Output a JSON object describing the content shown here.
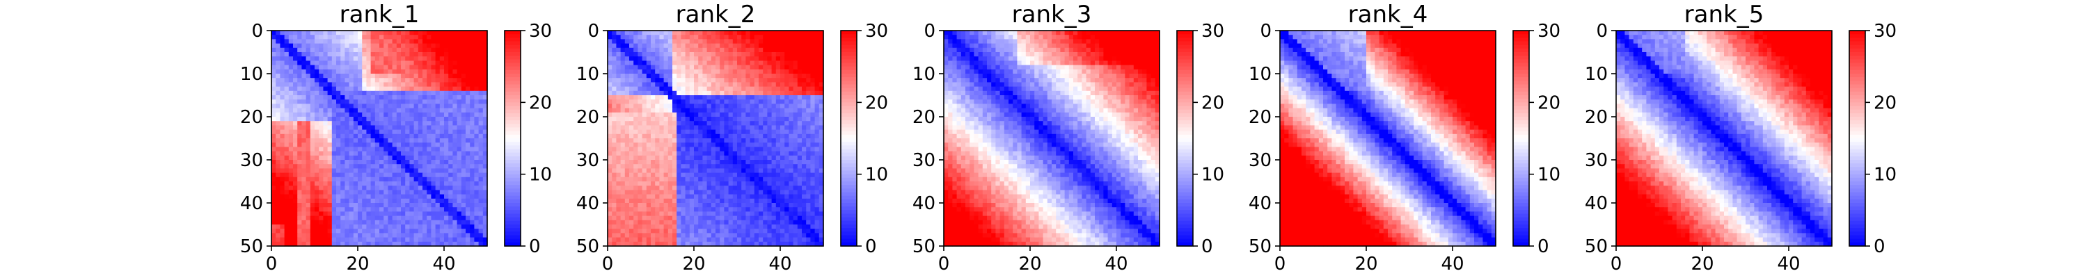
{
  "chart_data": [
    {
      "type": "heatmap",
      "title": "rank_1",
      "pattern": "rank_1",
      "size": 50,
      "xticks": [
        0,
        20,
        40
      ],
      "yticks": [
        0,
        10,
        20,
        30,
        40,
        50
      ],
      "xlim": [
        0,
        50
      ],
      "ylim": [
        50,
        0
      ],
      "colorbar": {
        "range": [
          0,
          30
        ],
        "ticks": [
          0,
          10,
          20,
          30
        ],
        "colormap": "bwr"
      }
    },
    {
      "type": "heatmap",
      "title": "rank_2",
      "pattern": "rank_2",
      "size": 50,
      "xticks": [
        0,
        20,
        40
      ],
      "yticks": [
        0,
        10,
        20,
        30,
        40,
        50
      ],
      "xlim": [
        0,
        50
      ],
      "ylim": [
        50,
        0
      ],
      "colorbar": {
        "range": [
          0,
          30
        ],
        "ticks": [
          0,
          10,
          20,
          30
        ],
        "colormap": "bwr"
      }
    },
    {
      "type": "heatmap",
      "title": "rank_3",
      "pattern": "rank_3",
      "size": 50,
      "xticks": [
        0,
        20,
        40
      ],
      "yticks": [
        0,
        10,
        20,
        30,
        40,
        50
      ],
      "xlim": [
        0,
        50
      ],
      "ylim": [
        50,
        0
      ],
      "colorbar": {
        "range": [
          0,
          30
        ],
        "ticks": [
          0,
          10,
          20,
          30
        ],
        "colormap": "bwr"
      }
    },
    {
      "type": "heatmap",
      "title": "rank_4",
      "pattern": "rank_4",
      "size": 50,
      "xticks": [
        0,
        20,
        40
      ],
      "yticks": [
        0,
        10,
        20,
        30,
        40,
        50
      ],
      "xlim": [
        0,
        50
      ],
      "ylim": [
        50,
        0
      ],
      "colorbar": {
        "range": [
          0,
          30
        ],
        "ticks": [
          0,
          10,
          20,
          30
        ],
        "colormap": "bwr"
      }
    },
    {
      "type": "heatmap",
      "title": "rank_5",
      "pattern": "rank_5",
      "size": 50,
      "xticks": [
        0,
        20,
        40
      ],
      "yticks": [
        0,
        10,
        20,
        30,
        40,
        50
      ],
      "xlim": [
        0,
        50
      ],
      "ylim": [
        50,
        0
      ],
      "colorbar": {
        "range": [
          0,
          30
        ],
        "ticks": [
          0,
          10,
          20,
          30
        ],
        "colormap": "bwr"
      }
    }
  ]
}
